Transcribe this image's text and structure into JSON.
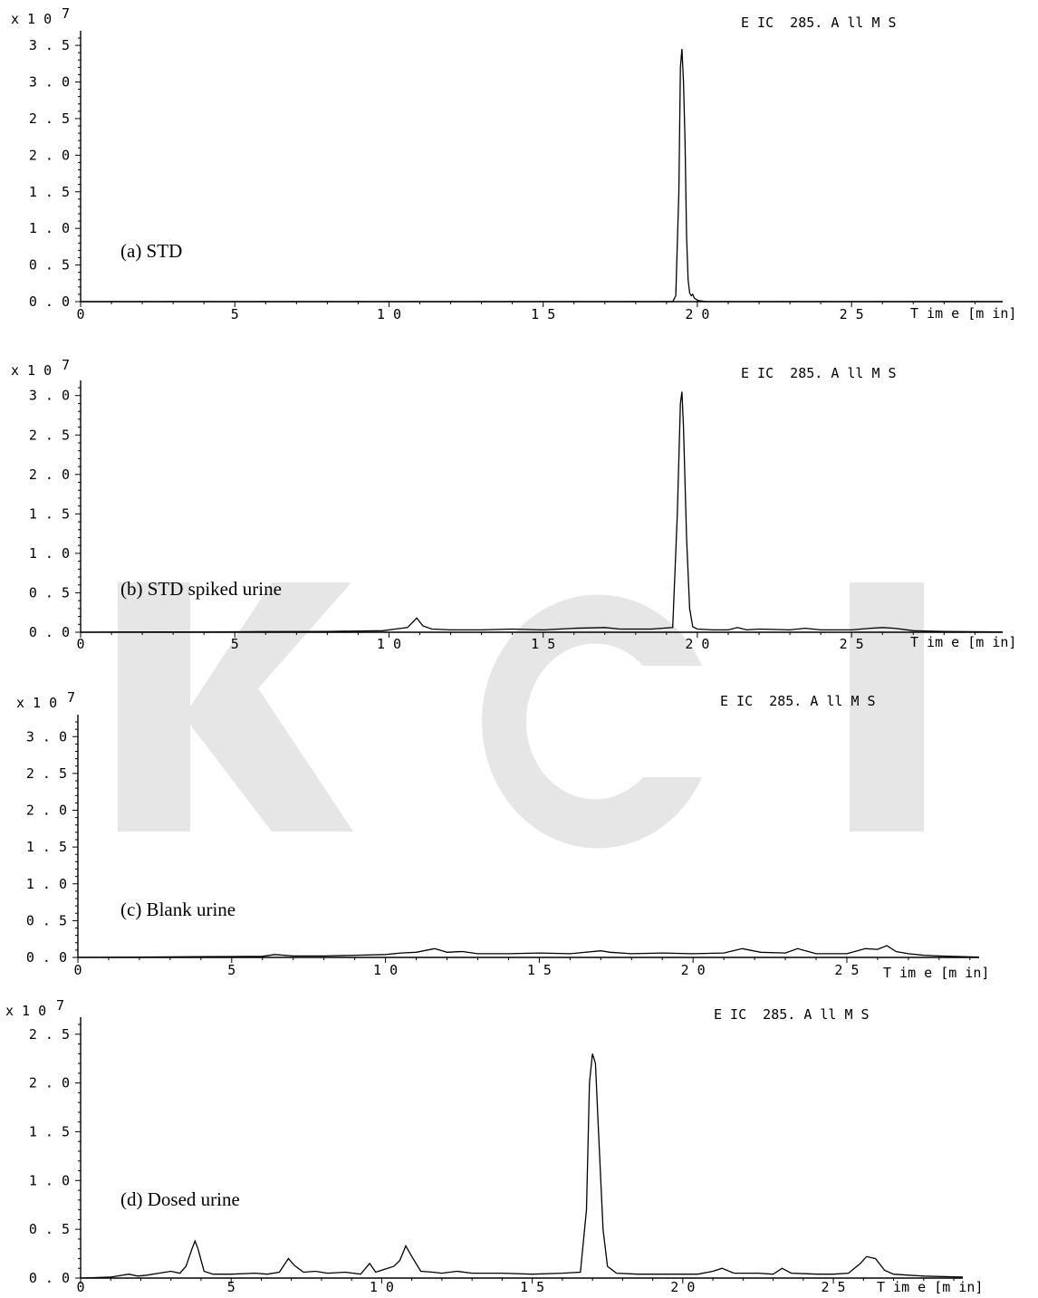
{
  "watermark": {
    "text": "KCI",
    "color": "#e6e6e6"
  },
  "chart_data": [
    {
      "type": "line",
      "panel_label": "(a) STD",
      "eic_label": "E IC  285. A ll M S",
      "scale_label": "x 1 0",
      "scale_exp": "7",
      "xlabel": "T im e [m in]",
      "xlim": [
        0,
        29.9
      ],
      "ylim": [
        0,
        3.6
      ],
      "yticks": [
        {
          "v": 0.0,
          "label": "0 . 0"
        },
        {
          "v": 0.5,
          "label": "0 . 5"
        },
        {
          "v": 1.0,
          "label": "1 . 0"
        },
        {
          "v": 1.5,
          "label": "1 . 5"
        },
        {
          "v": 2.0,
          "label": "2 . 0"
        },
        {
          "v": 2.5,
          "label": "2 . 5"
        },
        {
          "v": 3.0,
          "label": "3 . 0"
        },
        {
          "v": 3.5,
          "label": "3 . 5"
        }
      ],
      "xticks": [
        {
          "v": 0,
          "label": "0"
        },
        {
          "v": 5,
          "label": "5"
        },
        {
          "v": 10,
          "label": "1 0"
        },
        {
          "v": 15,
          "label": "1 5"
        },
        {
          "v": 20,
          "label": "2 0"
        },
        {
          "v": 25,
          "label": "2 5"
        }
      ],
      "series": [
        {
          "x": [
            0,
            19.2,
            19.3,
            19.4,
            19.45,
            19.5,
            19.55,
            19.6,
            19.65,
            19.7,
            19.75,
            19.8,
            19.85,
            19.9,
            20.0,
            20.1,
            20.3,
            29.9
          ],
          "y": [
            0,
            0,
            0.08,
            1.5,
            3.2,
            3.45,
            3.0,
            2.2,
            0.9,
            0.3,
            0.12,
            0.08,
            0.1,
            0.05,
            0.02,
            0.01,
            0,
            0
          ]
        }
      ]
    },
    {
      "type": "line",
      "panel_label": "(b) STD spiked urine",
      "eic_label": "E IC  285. A ll M S",
      "scale_label": "x 1 0",
      "scale_exp": "7",
      "xlabel": "T im e [m in]",
      "xlim": [
        0,
        29.9
      ],
      "ylim": [
        0,
        3.1
      ],
      "yticks": [
        {
          "v": 0.0,
          "label": "0 . 0"
        },
        {
          "v": 0.5,
          "label": "0 . 5"
        },
        {
          "v": 1.0,
          "label": "1 . 0"
        },
        {
          "v": 1.5,
          "label": "1 . 5"
        },
        {
          "v": 2.0,
          "label": "2 . 0"
        },
        {
          "v": 2.5,
          "label": "2 . 5"
        },
        {
          "v": 3.0,
          "label": "3 . 0"
        }
      ],
      "xticks": [
        {
          "v": 0,
          "label": "0"
        },
        {
          "v": 5,
          "label": "5"
        },
        {
          "v": 10,
          "label": "1 0"
        },
        {
          "v": 15,
          "label": "1 5"
        },
        {
          "v": 20,
          "label": "2 0"
        },
        {
          "v": 25,
          "label": "2 5"
        }
      ],
      "series": [
        {
          "x": [
            0,
            2.0,
            4.0,
            6.0,
            8.0,
            9.8,
            10.2,
            10.6,
            10.9,
            11.1,
            11.4,
            12.0,
            13.0,
            14.0,
            15.0,
            16.0,
            17.0,
            17.5,
            18.5,
            19.2,
            19.35,
            19.45,
            19.5,
            19.55,
            19.65,
            19.75,
            19.85,
            20.0,
            20.5,
            21.0,
            21.3,
            21.6,
            22.0,
            23.0,
            23.5,
            24.0,
            25.0,
            25.6,
            26.0,
            26.4,
            27.0,
            28.0,
            29.9
          ],
          "y": [
            0,
            0.005,
            0.005,
            0.008,
            0.01,
            0.02,
            0.04,
            0.06,
            0.18,
            0.08,
            0.04,
            0.03,
            0.03,
            0.04,
            0.03,
            0.05,
            0.06,
            0.04,
            0.04,
            0.06,
            1.5,
            2.9,
            3.05,
            2.6,
            1.2,
            0.3,
            0.07,
            0.04,
            0.03,
            0.03,
            0.06,
            0.03,
            0.04,
            0.03,
            0.05,
            0.03,
            0.03,
            0.05,
            0.06,
            0.05,
            0.02,
            0.01,
            0.005
          ]
        }
      ]
    },
    {
      "type": "line",
      "panel_label": "(c) Blank urine",
      "eic_label": "E IC  285. A ll M S",
      "scale_label": "x 1 0",
      "scale_exp": "7",
      "xlabel": "T im e [m in]",
      "xlim": [
        0,
        29.3
      ],
      "ylim": [
        0,
        3.2
      ],
      "yticks": [
        {
          "v": 0.0,
          "label": "0 . 0"
        },
        {
          "v": 0.5,
          "label": "0 . 5"
        },
        {
          "v": 1.0,
          "label": "1 . 0"
        },
        {
          "v": 1.5,
          "label": "1 . 5"
        },
        {
          "v": 2.0,
          "label": "2 . 0"
        },
        {
          "v": 2.5,
          "label": "2 . 5"
        },
        {
          "v": 3.0,
          "label": "3 . 0"
        }
      ],
      "xticks": [
        {
          "v": 0,
          "label": "0"
        },
        {
          "v": 5,
          "label": "5"
        },
        {
          "v": 10,
          "label": "1 0"
        },
        {
          "v": 15,
          "label": "1 5"
        },
        {
          "v": 20,
          "label": "2 0"
        },
        {
          "v": 25,
          "label": "2 5"
        }
      ],
      "series": [
        {
          "x": [
            0,
            2,
            4,
            6,
            6.4,
            7,
            8,
            9,
            10,
            10.5,
            11,
            11.6,
            12,
            12.5,
            13,
            14,
            15,
            16,
            17.0,
            17.3,
            18,
            19,
            20,
            21,
            21.6,
            22.2,
            23,
            23.4,
            24,
            25,
            25.6,
            26.0,
            26.3,
            26.6,
            27,
            27.5,
            28,
            29.3
          ],
          "y": [
            0,
            0.005,
            0.01,
            0.015,
            0.04,
            0.02,
            0.02,
            0.03,
            0.04,
            0.06,
            0.07,
            0.12,
            0.07,
            0.08,
            0.05,
            0.05,
            0.06,
            0.05,
            0.09,
            0.07,
            0.05,
            0.06,
            0.05,
            0.06,
            0.12,
            0.07,
            0.06,
            0.12,
            0.05,
            0.05,
            0.12,
            0.11,
            0.16,
            0.08,
            0.05,
            0.03,
            0.02,
            0.005
          ]
        }
      ]
    },
    {
      "type": "line",
      "panel_label": "(d) Dosed urine",
      "eic_label": "E IC  285. A ll M S",
      "scale_label": "x 1 0",
      "scale_exp": "7",
      "xlabel": "T im e [m in]",
      "xlim": [
        0,
        29.3
      ],
      "ylim": [
        0,
        2.6
      ],
      "yticks": [
        {
          "v": 0.0,
          "label": "0 . 0"
        },
        {
          "v": 0.5,
          "label": "0 . 5"
        },
        {
          "v": 1.0,
          "label": "1 . 0"
        },
        {
          "v": 1.5,
          "label": "1 . 5"
        },
        {
          "v": 2.0,
          "label": "2 . 0"
        },
        {
          "v": 2.5,
          "label": "2 . 5"
        }
      ],
      "xticks": [
        {
          "v": 0,
          "label": "0"
        },
        {
          "v": 5,
          "label": "5"
        },
        {
          "v": 10,
          "label": "1 0"
        },
        {
          "v": 15,
          "label": "1 5"
        },
        {
          "v": 20,
          "label": "2 0"
        },
        {
          "v": 25,
          "label": "2 5"
        }
      ],
      "series": [
        {
          "x": [
            0,
            1.0,
            1.6,
            1.9,
            2.2,
            2.6,
            3.0,
            3.3,
            3.5,
            3.7,
            3.8,
            3.9,
            4.1,
            4.4,
            5.0,
            5.8,
            6.2,
            6.6,
            6.9,
            7.1,
            7.4,
            7.8,
            8.2,
            8.8,
            9.3,
            9.6,
            9.8,
            10.1,
            10.4,
            10.6,
            10.8,
            11.0,
            11.3,
            11.7,
            12.0,
            12.5,
            13.0,
            14.0,
            15.0,
            16.0,
            16.6,
            16.8,
            16.9,
            17.0,
            17.1,
            17.2,
            17.35,
            17.5,
            17.8,
            18.5,
            19.5,
            20.5,
            21.0,
            21.3,
            21.7,
            22.5,
            23.0,
            23.3,
            23.6,
            24.5,
            25.0,
            25.5,
            25.9,
            26.1,
            26.4,
            26.7,
            27.0,
            27.5,
            28.0,
            29.3
          ],
          "y": [
            0,
            0.01,
            0.04,
            0.02,
            0.03,
            0.05,
            0.07,
            0.05,
            0.12,
            0.3,
            0.38,
            0.3,
            0.07,
            0.04,
            0.04,
            0.05,
            0.04,
            0.06,
            0.2,
            0.13,
            0.06,
            0.07,
            0.05,
            0.06,
            0.04,
            0.15,
            0.06,
            0.09,
            0.12,
            0.18,
            0.33,
            0.22,
            0.07,
            0.06,
            0.05,
            0.07,
            0.05,
            0.05,
            0.04,
            0.05,
            0.06,
            0.7,
            2.0,
            2.3,
            2.2,
            1.5,
            0.5,
            0.12,
            0.05,
            0.04,
            0.04,
            0.04,
            0.07,
            0.1,
            0.05,
            0.05,
            0.04,
            0.1,
            0.05,
            0.04,
            0.04,
            0.05,
            0.15,
            0.22,
            0.2,
            0.08,
            0.04,
            0.03,
            0.02,
            0.01
          ]
        }
      ]
    }
  ]
}
